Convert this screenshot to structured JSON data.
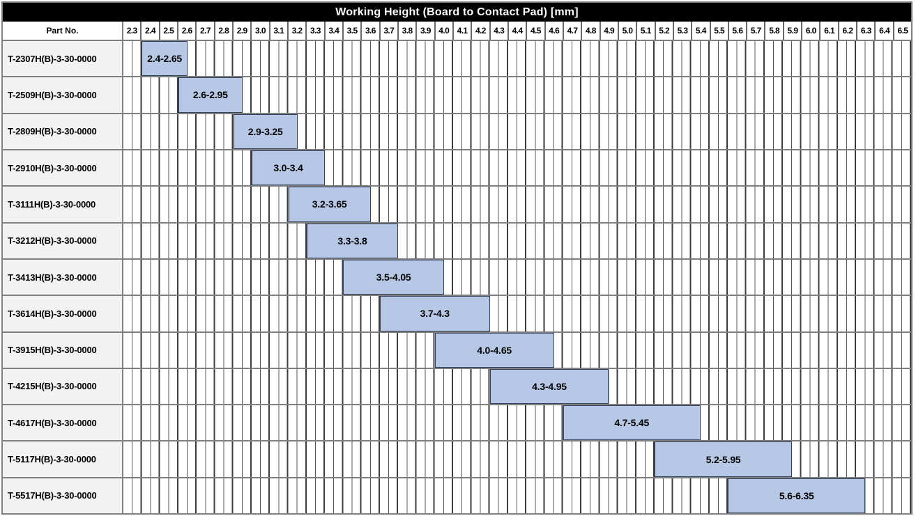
{
  "title": "Working Height (Board to Contact Pad) [mm]",
  "part_no_header": "Part No.",
  "colors": {
    "title_bg": "#000000",
    "title_fg": "#ffffff",
    "bar_fill": "#b6c8e6",
    "bar_border": "#33415e",
    "label_bg": "#f2f2f2",
    "outer_border": "#808080",
    "row_separator": "#7f7f7f",
    "tick_border": "#6a6a6a",
    "grid_major": "#3c3c3c",
    "grid_minor": "#555555"
  },
  "chart_data": {
    "type": "bar",
    "subtype": "horizontal-range",
    "title": "Working Height (Board to Contact Pad) [mm]",
    "row_header": "Part No.",
    "x_axis": {
      "min": 2.3,
      "max": 6.6,
      "tick_step": 0.1,
      "grid_step": 0.05,
      "unit": "mm",
      "tick_labels": [
        "2.3",
        "2.4",
        "2.5",
        "2.6",
        "2.7",
        "2.8",
        "2.9",
        "3.0",
        "3.1",
        "3.2",
        "3.3",
        "3.4",
        "3.5",
        "3.6",
        "3.7",
        "3.8",
        "3.9",
        "4.0",
        "4.1",
        "4.2",
        "4.3",
        "4.4",
        "4.5",
        "4.6",
        "4.7",
        "4.8",
        "4.9",
        "5.0",
        "5.1",
        "5.2",
        "5.3",
        "5.4",
        "5.5",
        "5.6",
        "5.7",
        "5.8",
        "5.9",
        "6.0",
        "6.1",
        "6.2",
        "6.3",
        "6.4",
        "6.5"
      ]
    },
    "rows": [
      {
        "part_no": "T-2307H(B)-3-30-0000",
        "range_min": 2.4,
        "range_max": 2.65,
        "label": "2.4-2.65"
      },
      {
        "part_no": "T-2509H(B)-3-30-0000",
        "range_min": 2.6,
        "range_max": 2.95,
        "label": "2.6-2.95"
      },
      {
        "part_no": "T-2809H(B)-3-30-0000",
        "range_min": 2.9,
        "range_max": 3.25,
        "label": "2.9-3.25"
      },
      {
        "part_no": "T-2910H(B)-3-30-0000",
        "range_min": 3.0,
        "range_max": 3.4,
        "label": "3.0-3.4"
      },
      {
        "part_no": "T-3111H(B)-3-30-0000",
        "range_min": 3.2,
        "range_max": 3.65,
        "label": "3.2-3.65"
      },
      {
        "part_no": "T-3212H(B)-3-30-0000",
        "range_min": 3.3,
        "range_max": 3.8,
        "label": "3.3-3.8"
      },
      {
        "part_no": "T-3413H(B)-3-30-0000",
        "range_min": 3.5,
        "range_max": 4.05,
        "label": "3.5-4.05"
      },
      {
        "part_no": "T-3614H(B)-3-30-0000",
        "range_min": 3.7,
        "range_max": 4.3,
        "label": "3.7-4.3"
      },
      {
        "part_no": "T-3915H(B)-3-30-0000",
        "range_min": 4.0,
        "range_max": 4.65,
        "label": "4.0-4.65"
      },
      {
        "part_no": "T-4215H(B)-3-30-0000",
        "range_min": 4.3,
        "range_max": 4.95,
        "label": "4.3-4.95"
      },
      {
        "part_no": "T-4617H(B)-3-30-0000",
        "range_min": 4.7,
        "range_max": 5.45,
        "label": "4.7-5.45"
      },
      {
        "part_no": "T-5117H(B)-3-30-0000",
        "range_min": 5.2,
        "range_max": 5.95,
        "label": "5.2-5.95"
      },
      {
        "part_no": "T-5517H(B)-3-30-0000",
        "range_min": 5.6,
        "range_max": 6.35,
        "label": "5.6-6.35"
      }
    ]
  }
}
